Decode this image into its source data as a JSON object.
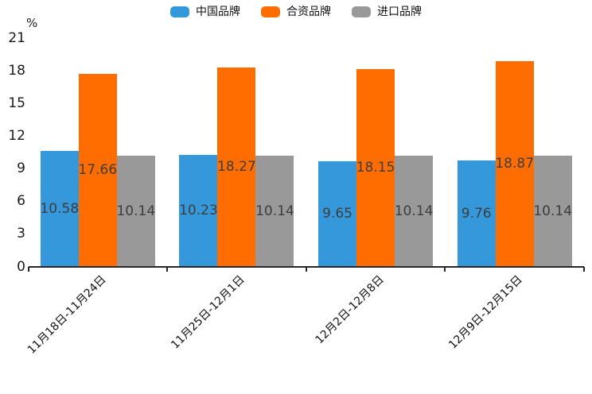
{
  "chart_data": {
    "type": "bar",
    "title": "",
    "categories": [
      "11月18日-11月24日",
      "11月25日-12月1日",
      "12月2日-12月8日",
      "12月9日-12月15日"
    ],
    "series": [
      {
        "name": "中国品牌",
        "color": "#3598DB",
        "values": [
          10.58,
          10.23,
          9.65,
          9.76
        ]
      },
      {
        "name": "合资品牌",
        "color": "#FF6C00",
        "values": [
          17.66,
          18.27,
          18.15,
          18.87
        ]
      },
      {
        "name": "进口品牌",
        "color": "#999999",
        "values": [
          10.14,
          10.14,
          10.14,
          10.14
        ]
      }
    ],
    "xlabel": "",
    "ylabel": "%",
    "ylim": [
      0,
      21
    ],
    "yticks": [
      0,
      3,
      6,
      9,
      12,
      15,
      18,
      21
    ],
    "grid": false,
    "legend_position": "top-center",
    "bar_label_position": "inside-center",
    "axis_color": "#262626"
  }
}
